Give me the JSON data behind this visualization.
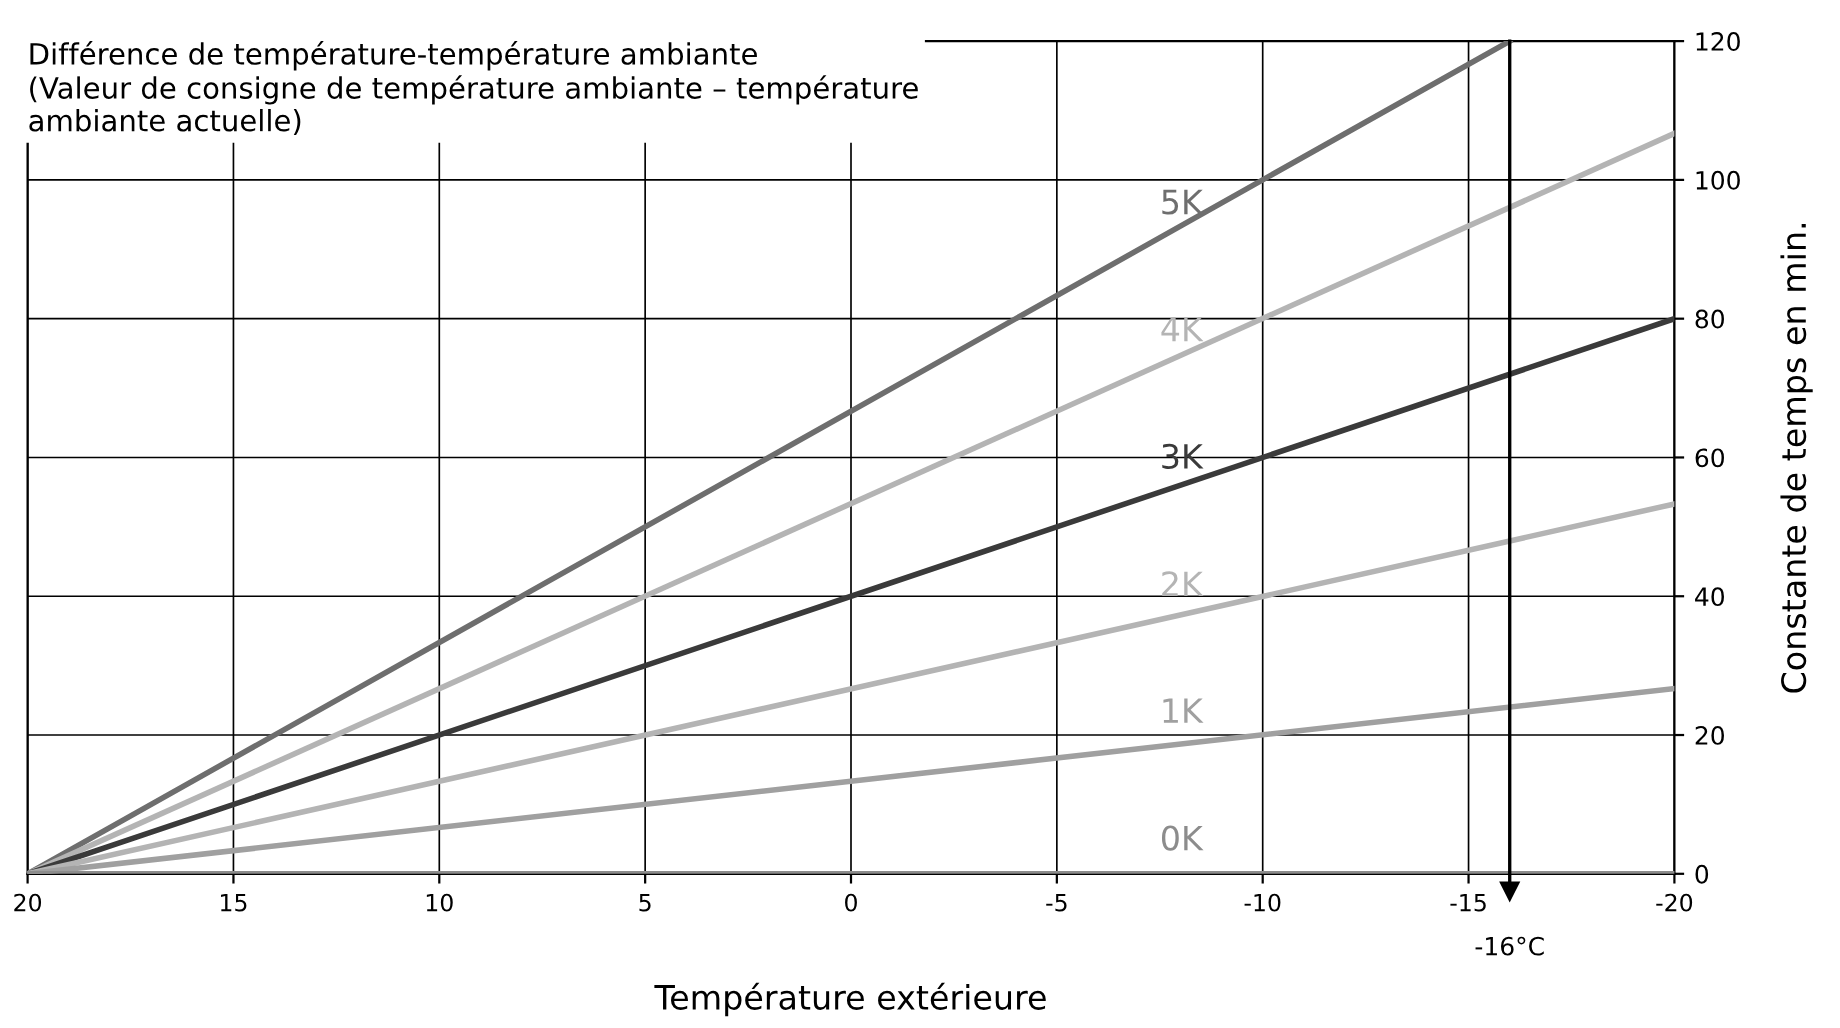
{
  "chart_data": {
    "type": "line",
    "xlabel": "Température extérieure",
    "ylabel": "Constante de temps en min.",
    "annotations": [
      "Différence de température-température ambiante\n(Valeur de consigne de température ambiante – température\nambiante actuelle)"
    ],
    "series": [
      {
        "name": "5K",
        "color": "#6e6e6e",
        "x": [
          20,
          -16
        ],
        "values": [
          0,
          120
        ]
      },
      {
        "name": "4K",
        "color": "#b4b4b4",
        "x": [
          20,
          -20
        ],
        "values": [
          0,
          106.7
        ]
      },
      {
        "name": "3K",
        "color": "#3a3a3a",
        "x": [
          20,
          -20
        ],
        "values": [
          0,
          80
        ]
      },
      {
        "name": "2K",
        "color": "#b4b4b4",
        "x": [
          20,
          -20
        ],
        "values": [
          0,
          53.3
        ]
      },
      {
        "name": "1K",
        "color": "#a0a0a0",
        "x": [
          20,
          -20
        ],
        "values": [
          0,
          26.7
        ]
      },
      {
        "name": "0K",
        "color": "#8c8c8c",
        "x": [
          20,
          -20
        ],
        "values": [
          0,
          0
        ]
      }
    ],
    "xlim": [
      20,
      -20
    ],
    "xticks": [
      20,
      15,
      10,
      5,
      0,
      -5,
      -10,
      -15,
      -20
    ],
    "ylim": [
      0,
      120
    ],
    "yticks": [
      0,
      20,
      40,
      60,
      80,
      100,
      120
    ],
    "ref_lines": [
      {
        "axis": "x",
        "value": -16,
        "label": "-16°C",
        "color": "#000000"
      }
    ],
    "grid": true,
    "marker": "none",
    "line_style": "solid",
    "legend": false
  }
}
